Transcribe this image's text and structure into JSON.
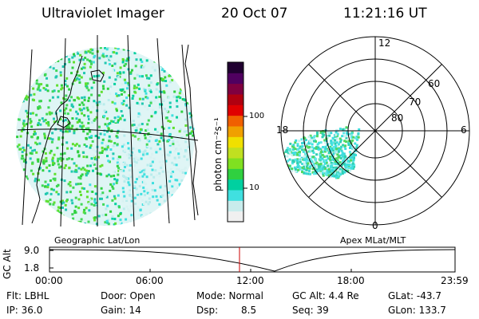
{
  "header": {
    "instrument": "Ultraviolet Imager",
    "date": "20 Oct 07",
    "time": "11:21:16 UT"
  },
  "colorbar": {
    "unit_label": "photon cm⁻²s⁻¹",
    "ticks": [
      "100",
      "10"
    ],
    "colors": [
      "#f0f0f0",
      "#c8ecec",
      "#40e0e0",
      "#00d0a0",
      "#30d040",
      "#80e020",
      "#c0e020",
      "#f0e000",
      "#f0a000",
      "#f06000",
      "#e00000",
      "#b00010",
      "#800040",
      "#500060",
      "#200030"
    ]
  },
  "geo_panel": {
    "label": "Geographic Lat/Lon"
  },
  "polar_panel": {
    "label": "Apex MLat/MLT",
    "mlt_labels": [
      "12",
      "18",
      "6",
      "0"
    ],
    "lat_labels": [
      "60",
      "70",
      "80"
    ]
  },
  "timeline": {
    "ylabel": "GC Alt",
    "y_ticks": [
      "9.0",
      "1.8"
    ],
    "x_ticks": [
      "00:00",
      "06:00",
      "12:00",
      "18:00",
      "23:59"
    ],
    "marker_time": "11:21"
  },
  "footer": {
    "flt": "Flt: LBHL",
    "ip": "IP: 36.0",
    "door": "Door: Open",
    "gain": "Gain: 14",
    "mode": "Mode: Normal",
    "dsp_label": "Dsp:",
    "dsp_value": "8.5",
    "gc_alt": "GC Alt: 4.4 Re",
    "seq": "Seq: 39",
    "glat": "GLat: -43.7",
    "glon": "GLon: 133.7"
  }
}
